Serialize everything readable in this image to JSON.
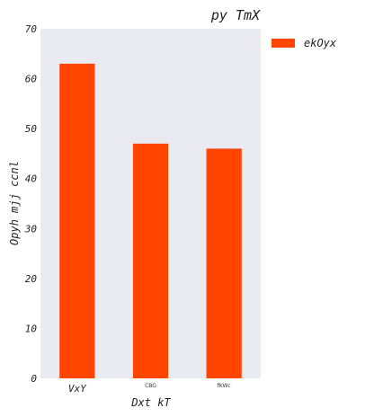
{
  "chart_data": {
    "type": "bar",
    "title": "py TmX",
    "xlabel": "Dxt kT",
    "ylabel": "Opyh mjj  ccnl",
    "categories": [
      "VxY",
      "CBG",
      "fKWc"
    ],
    "series": [
      {
        "name": "ekOyx",
        "values": [
          63,
          47,
          46
        ],
        "color": "#ff4500"
      }
    ],
    "ylim": [
      0,
      70
    ],
    "yticks": [
      0,
      10,
      20,
      30,
      40,
      50,
      60,
      70
    ],
    "grid": false,
    "legend_position": "outside-top-right",
    "background_color": "#eaeaf2"
  }
}
